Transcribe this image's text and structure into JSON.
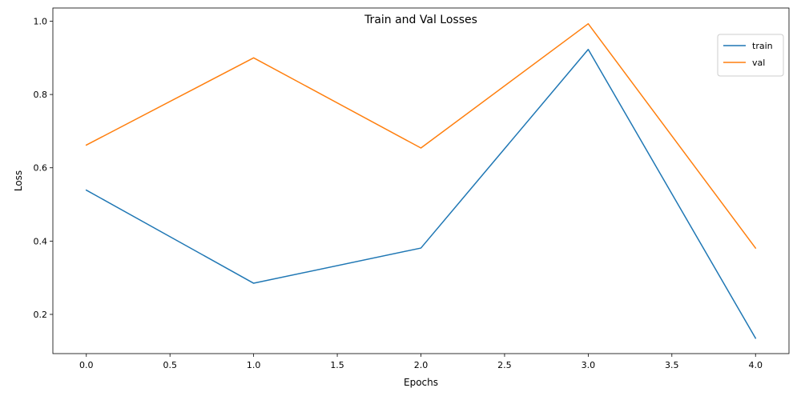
{
  "chart_data": {
    "type": "line",
    "title": "Train and Val Losses",
    "xlabel": "Epochs",
    "ylabel": "Loss",
    "x": [
      0,
      1,
      2,
      3,
      4
    ],
    "series": [
      {
        "name": "train",
        "color": "#1f77b4",
        "values": [
          0.539,
          0.285,
          0.381,
          0.923,
          0.135
        ]
      },
      {
        "name": "val",
        "color": "#ff7f0e",
        "values": [
          0.662,
          0.9,
          0.654,
          0.993,
          0.381
        ]
      }
    ],
    "xlim": [
      -0.2,
      4.2
    ],
    "ylim": [
      0.093,
      1.036
    ],
    "xticks": [
      0.0,
      0.5,
      1.0,
      1.5,
      2.0,
      2.5,
      3.0,
      3.5,
      4.0
    ],
    "xtick_labels": [
      "0.0",
      "0.5",
      "1.0",
      "1.5",
      "2.0",
      "2.5",
      "3.0",
      "3.5",
      "4.0"
    ],
    "yticks": [
      0.2,
      0.4,
      0.6,
      0.8,
      1.0
    ],
    "ytick_labels": [
      "0.2",
      "0.4",
      "0.6",
      "0.8",
      "1.0"
    ],
    "grid": false,
    "legend_position": "top-right"
  }
}
